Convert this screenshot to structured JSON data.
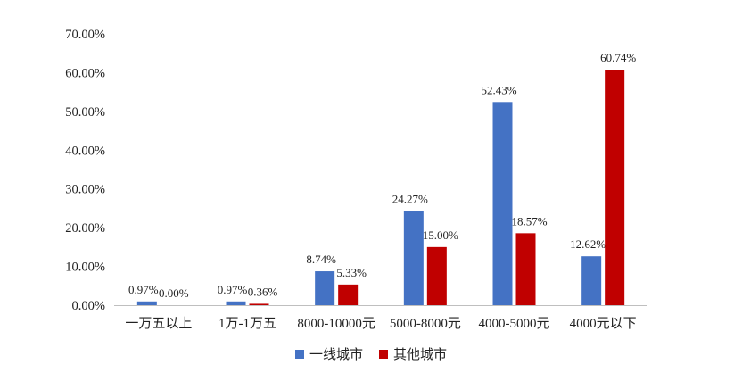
{
  "chart_data": {
    "type": "bar",
    "categories": [
      "一万五以上",
      "1万-1万五",
      "8000-10000元",
      "5000-8000元",
      "4000-5000元",
      "4000元以下"
    ],
    "series": [
      {
        "name": "一线城市",
        "values": [
          0.97,
          0.97,
          8.74,
          24.27,
          52.43,
          12.62
        ],
        "labels": [
          "0.97%",
          "0.97%",
          "8.74%",
          "24.27%",
          "52.43%",
          "12.62%"
        ],
        "color": "#4472C4"
      },
      {
        "name": "其他城市",
        "values": [
          0.0,
          0.36,
          5.33,
          15.0,
          18.57,
          60.74
        ],
        "labels": [
          "0.00%",
          "0.36%",
          "5.33%",
          "15.00%",
          "18.57%",
          "60.74%"
        ],
        "color": "#C00000"
      }
    ],
    "y_ticks": [
      "0.00%",
      "10.00%",
      "20.00%",
      "30.00%",
      "40.00%",
      "50.00%",
      "60.00%",
      "70.00%"
    ],
    "ylim": [
      0,
      70
    ],
    "grid": false,
    "legend_position": "bottom",
    "title": "",
    "xlabel": "",
    "ylabel": ""
  }
}
